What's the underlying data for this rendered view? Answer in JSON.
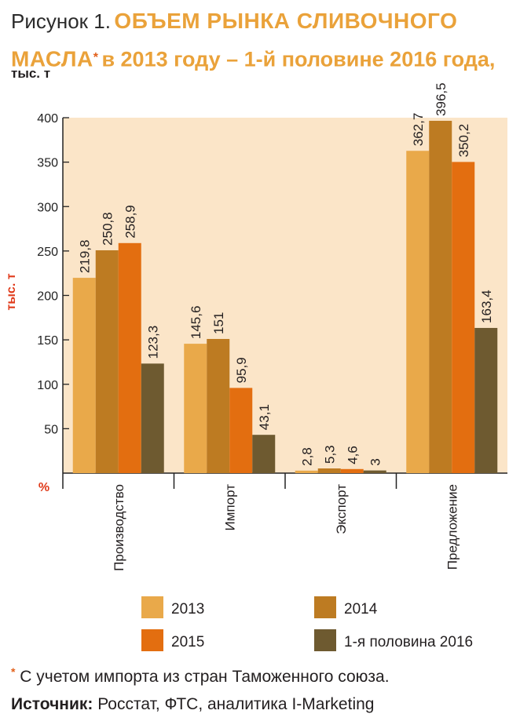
{
  "header": {
    "prefix": "Рисунок 1.",
    "title": "ОБЪЕМ РЫНКА СЛИВОЧНОГО МАСЛА",
    "footnote_mark": "*",
    "subtitle": "в 2013 году – 1-й половине 2016 года,",
    "units": "тыс. т"
  },
  "footer": {
    "footnote_mark": "*",
    "footnote": "С учетом импорта из стран Таможенного союза.",
    "source_label": "Источник:",
    "source_text": "Росстат, ФТС, аналитика I-Marketing"
  },
  "chart_data": {
    "type": "bar",
    "title": "ОБЪЕМ РЫНКА СЛИВОЧНОГО МАСЛА* в 2013 году – 1-й половине 2016 года, тыс. т",
    "ylabel": "тыс. т",
    "y_corner_label": "%",
    "xlabel": "",
    "ylim": [
      0,
      400
    ],
    "yticks": [
      50,
      100,
      150,
      200,
      250,
      300,
      350,
      400
    ],
    "grid": false,
    "legend_position": "bottom",
    "categories": [
      "Производство",
      "Импорт",
      "Экспорт",
      "Предложение"
    ],
    "series": [
      {
        "name": "2013",
        "color": "#e9a94a",
        "values": [
          219.8,
          145.6,
          2.8,
          362.7
        ],
        "labels": [
          "219,8",
          "145,6",
          "2,8",
          "362,7"
        ]
      },
      {
        "name": "2014",
        "color": "#bd7b22",
        "values": [
          250.8,
          151,
          5.3,
          396.5
        ],
        "labels": [
          "250,8",
          "151",
          "5,3",
          "396,5"
        ]
      },
      {
        "name": "2015",
        "color": "#e36e10",
        "values": [
          258.9,
          95.9,
          4.6,
          350.2
        ],
        "labels": [
          "258,9",
          "95,9",
          "4,6",
          "350,2"
        ]
      },
      {
        "name": "1-я половина 2016",
        "color": "#6e5a30",
        "values": [
          123.3,
          43.1,
          3,
          163.4
        ],
        "labels": [
          "123,3",
          "43,1",
          "3",
          "163,4"
        ]
      }
    ],
    "colors": {
      "plot_background": "#fbe5c8",
      "axis": "#222222",
      "ylabel": "#e03a1a"
    }
  }
}
